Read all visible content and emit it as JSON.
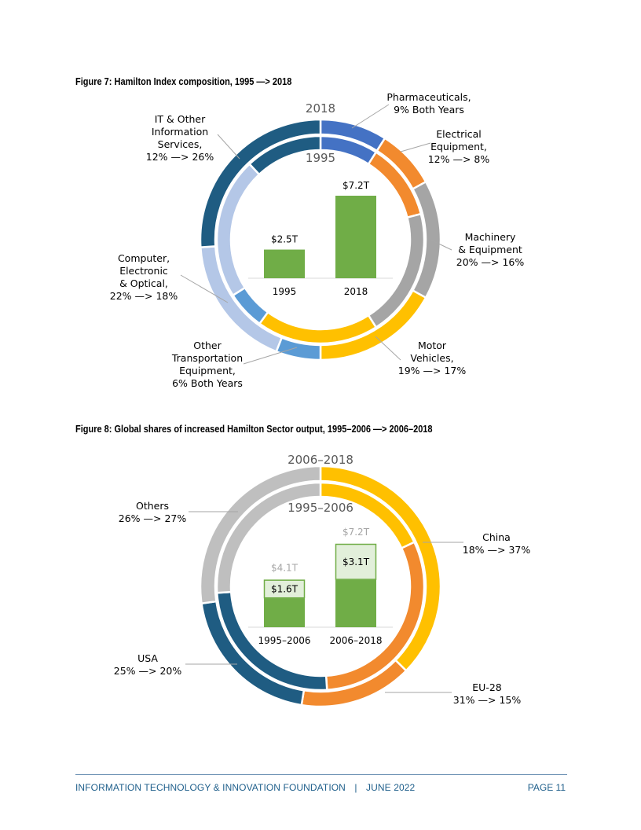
{
  "page": {
    "footer_org": "INFORMATION TECHNOLOGY & INNOVATION FOUNDATION",
    "footer_sep": "|",
    "footer_date": "JUNE 2022",
    "footer_page": "PAGE 11"
  },
  "chart_data": [
    {
      "type": "donut",
      "title": "Figure 7: Hamilton Index composition, 1995 —> 2018",
      "outer_ring_label": "2018",
      "inner_ring_label": "1995",
      "categories": [
        "Pharmaceuticals",
        "Electrical Equipment",
        "Machinery & Equipment",
        "Motor Vehicles",
        "Other Transportation Equipment",
        "Computer, Electronic & Optical",
        "IT & Other Information Services"
      ],
      "colors": [
        "#4472c4",
        "#f28a2e",
        "#a5a5a5",
        "#ffc000",
        "#5b9bd5",
        "#b4c7e7",
        "#1f5c82"
      ],
      "series": [
        {
          "name": "1995",
          "values": [
            9,
            12,
            20,
            19,
            6,
            22,
            12
          ]
        },
        {
          "name": "2018",
          "values": [
            9,
            8,
            16,
            17,
            6,
            18,
            26
          ]
        }
      ],
      "labels": [
        [
          "Pharmaceuticals,",
          "9% Both Years"
        ],
        [
          "Electrical",
          "Equipment,",
          "12% —> 8%"
        ],
        [
          "Machinery",
          "& Equipment",
          "20% —> 16%"
        ],
        [
          "Motor",
          "Vehicles,",
          "19% —> 17%"
        ],
        [
          "Other",
          "Transportation",
          "Equipment,",
          "6% Both Years"
        ],
        [
          "Computer,",
          "Electronic",
          "& Optical,",
          "22% —> 18%"
        ],
        [
          "IT & Other",
          "Information",
          "Services,",
          "12% —> 26%"
        ]
      ],
      "inset_bar": {
        "categories": [
          "1995",
          "2018"
        ],
        "values": [
          2.5,
          7.2
        ],
        "value_labels": [
          "$2.5T",
          "$7.2T"
        ],
        "color": "#70ad47"
      }
    },
    {
      "type": "donut",
      "title": "Figure 8: Global shares of increased Hamilton Sector output, 1995–2006 —> 2006–2018",
      "outer_ring_label": "2006–2018",
      "inner_ring_label": "1995–2006",
      "categories": [
        "China",
        "EU-28",
        "USA",
        "Others"
      ],
      "colors": [
        "#ffc000",
        "#f28a2e",
        "#1f5c82",
        "#bfbfbf"
      ],
      "series": [
        {
          "name": "1995–2006",
          "values": [
            18,
            31,
            25,
            26
          ]
        },
        {
          "name": "2006–2018",
          "values": [
            37,
            15,
            20,
            27
          ]
        }
      ],
      "labels": [
        [
          "China",
          "18% —> 37%"
        ],
        [
          "EU-28",
          "31% —> 15%"
        ],
        [
          "USA",
          "25% —> 20%"
        ],
        [
          "Others",
          "26% —> 27%"
        ]
      ],
      "inset_bar": {
        "categories": [
          "1995–2006",
          "2006–2018"
        ],
        "totals": [
          4.1,
          7.2
        ],
        "total_labels": [
          "$4.1T",
          "$7.2T"
        ],
        "increments": [
          1.6,
          3.1
        ],
        "increment_labels": [
          "$1.6T",
          "$3.1T"
        ],
        "color": "#70ad47",
        "increment_color": "#e2efda"
      }
    }
  ]
}
